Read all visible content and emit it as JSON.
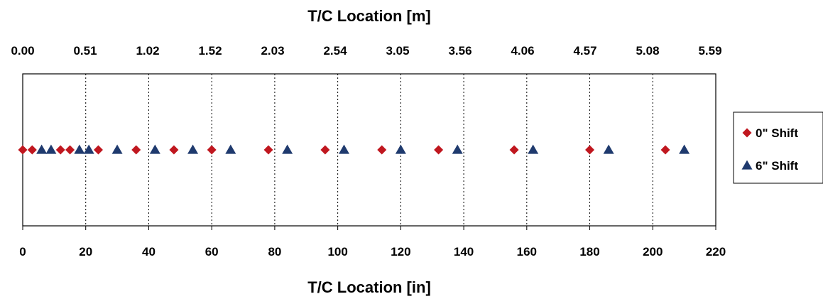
{
  "chart_data": {
    "type": "scatter",
    "xlabel": "T/C Location [in]",
    "x2label": "T/C Location [m]",
    "xlim": [
      0,
      220
    ],
    "x_ticks": [
      "0",
      "20",
      "40",
      "60",
      "80",
      "100",
      "120",
      "140",
      "160",
      "180",
      "200",
      "220"
    ],
    "x2_ticks": [
      "0.00",
      "0.51",
      "1.02",
      "1.52",
      "2.03",
      "2.54",
      "3.05",
      "3.56",
      "4.06",
      "4.57",
      "5.08",
      "5.59"
    ],
    "grid": "vertical dotted",
    "legend_position": "right",
    "series": [
      {
        "name": "0\" Shift",
        "marker": "diamond",
        "color": "#C0171F",
        "x": [
          0,
          3,
          12,
          15,
          24,
          36,
          48,
          60,
          78,
          96,
          114,
          132,
          156,
          180,
          204
        ],
        "y": [
          0,
          0,
          0,
          0,
          0,
          0,
          0,
          0,
          0,
          0,
          0,
          0,
          0,
          0,
          0
        ]
      },
      {
        "name": "6\" Shift",
        "marker": "triangle",
        "color": "#1F3A6E",
        "x": [
          6,
          9,
          18,
          21,
          30,
          42,
          54,
          66,
          84,
          102,
          120,
          138,
          162,
          186,
          210
        ],
        "y": [
          0,
          0,
          0,
          0,
          0,
          0,
          0,
          0,
          0,
          0,
          0,
          0,
          0,
          0,
          0
        ]
      }
    ]
  }
}
